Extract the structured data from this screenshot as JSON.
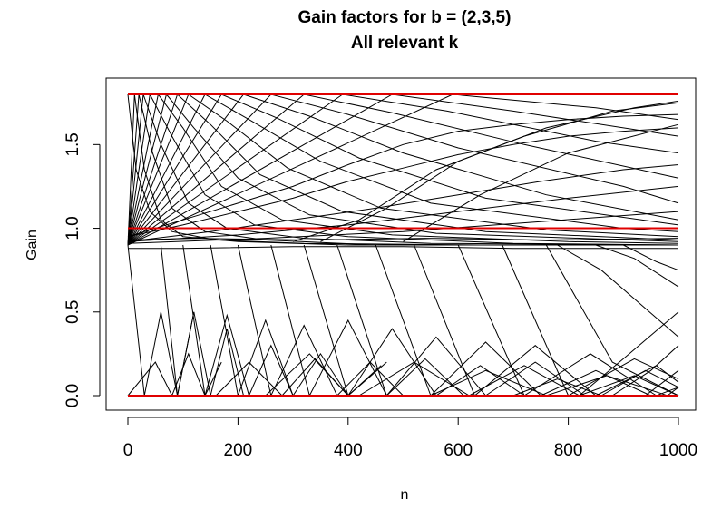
{
  "chart_data": {
    "type": "line",
    "title": "Gain factors for b = (2,3,5)",
    "subtitle": "All relevant k",
    "xlabel": "n",
    "ylabel": "Gain",
    "xlim": [
      0,
      1000
    ],
    "ylim": [
      0,
      1.8
    ],
    "x_ticks": [
      "0",
      "200",
      "400",
      "600",
      "800",
      "1000"
    ],
    "y_ticks": [
      "0.0",
      "0.5",
      "1.0",
      "1.5"
    ],
    "grid": false,
    "reference_lines": [
      {
        "y": 0.0,
        "color": "#e00000"
      },
      {
        "y": 1.0,
        "color": "#e00000"
      },
      {
        "y": 1.8,
        "color": "#e00000"
      }
    ],
    "series_color": "#000000",
    "series": [
      {
        "x": [
          0,
          12,
          30,
          60,
          100,
          200,
          400,
          700,
          1000
        ],
        "values": [
          0.9,
          1.8,
          1.35,
          1.05,
          0.95,
          0.92,
          0.9,
          0.9,
          0.9
        ]
      },
      {
        "x": [
          0,
          20,
          45,
          80,
          140,
          250,
          450,
          750,
          1000
        ],
        "values": [
          0.9,
          1.8,
          1.45,
          1.12,
          0.98,
          0.93,
          0.9,
          0.9,
          0.9
        ]
      },
      {
        "x": [
          0,
          28,
          60,
          110,
          180,
          320,
          550,
          1000
        ],
        "values": [
          0.9,
          1.8,
          1.5,
          1.15,
          1.0,
          0.94,
          0.91,
          0.9
        ]
      },
      {
        "x": [
          0,
          40,
          80,
          140,
          230,
          400,
          700,
          1000
        ],
        "values": [
          0.9,
          1.8,
          1.55,
          1.2,
          1.02,
          0.95,
          0.91,
          0.9
        ]
      },
      {
        "x": [
          0,
          55,
          100,
          170,
          280,
          480,
          800,
          1000
        ],
        "values": [
          0.9,
          1.8,
          1.6,
          1.25,
          1.05,
          0.96,
          0.92,
          0.91
        ]
      },
      {
        "x": [
          0,
          70,
          120,
          200,
          330,
          560,
          1000
        ],
        "values": [
          0.9,
          1.8,
          1.6,
          1.3,
          1.08,
          0.97,
          0.92
        ]
      },
      {
        "x": [
          0,
          90,
          150,
          240,
          390,
          650,
          1000
        ],
        "values": [
          0.9,
          1.8,
          1.62,
          1.32,
          1.1,
          0.98,
          0.93
        ]
      },
      {
        "x": [
          0,
          110,
          180,
          290,
          460,
          760,
          1000
        ],
        "values": [
          0.9,
          1.8,
          1.64,
          1.36,
          1.12,
          0.99,
          0.95
        ]
      },
      {
        "x": [
          0,
          140,
          220,
          350,
          550,
          900,
          1000
        ],
        "values": [
          0.9,
          1.8,
          1.65,
          1.4,
          1.15,
          1.0,
          0.98
        ]
      },
      {
        "x": [
          0,
          170,
          270,
          420,
          650,
          1000
        ],
        "values": [
          0.9,
          1.8,
          1.66,
          1.42,
          1.18,
          1.02
        ]
      },
      {
        "x": [
          0,
          210,
          330,
          500,
          760,
          1000
        ],
        "values": [
          0.9,
          1.8,
          1.67,
          1.45,
          1.2,
          1.05
        ]
      },
      {
        "x": [
          0,
          260,
          400,
          600,
          900,
          1000
        ],
        "values": [
          0.9,
          1.8,
          1.68,
          1.48,
          1.25,
          1.15
        ]
      },
      {
        "x": [
          0,
          320,
          480,
          720,
          1000
        ],
        "values": [
          0.9,
          1.8,
          1.69,
          1.5,
          1.3
        ]
      },
      {
        "x": [
          0,
          390,
          580,
          850,
          1000
        ],
        "values": [
          0.9,
          1.8,
          1.7,
          1.52,
          1.45
        ]
      },
      {
        "x": [
          0,
          480,
          700,
          1000
        ],
        "values": [
          0.9,
          1.8,
          1.7,
          1.55
        ]
      },
      {
        "x": [
          0,
          590,
          850,
          1000
        ],
        "values": [
          0.9,
          1.8,
          1.72,
          1.65
        ]
      },
      {
        "x": [
          0,
          15,
          40,
          80,
          160,
          320,
          640,
          1000
        ],
        "values": [
          1.8,
          1.35,
          1.1,
          0.98,
          0.93,
          0.91,
          0.9,
          0.9
        ]
      },
      {
        "x": [
          0,
          100,
          200,
          300,
          400,
          500,
          600,
          700,
          800,
          900,
          1000
        ],
        "values": [
          0.95,
          1.05,
          1.15,
          1.25,
          1.38,
          1.5,
          1.58,
          1.62,
          1.65,
          1.67,
          1.68
        ]
      },
      {
        "x": [
          0,
          100,
          200,
          300,
          400,
          500,
          600,
          700,
          800,
          900,
          1000
        ],
        "values": [
          0.95,
          1.02,
          1.1,
          1.18,
          1.28,
          1.36,
          1.44,
          1.5,
          1.55,
          1.58,
          1.6
        ]
      },
      {
        "x": [
          0,
          150,
          300,
          450,
          600,
          750,
          900,
          1000
        ],
        "values": [
          0.92,
          0.98,
          1.05,
          1.12,
          1.2,
          1.28,
          1.35,
          1.38
        ]
      },
      {
        "x": [
          0,
          200,
          400,
          600,
          800,
          1000
        ],
        "values": [
          0.92,
          0.96,
          1.02,
          1.1,
          1.18,
          1.25
        ]
      },
      {
        "x": [
          0,
          250,
          500,
          750,
          1000
        ],
        "values": [
          0.91,
          0.94,
          0.98,
          1.04,
          1.1
        ]
      },
      {
        "x": [
          300,
          420,
          560,
          720,
          880,
          1000
        ],
        "values": [
          0.92,
          1.05,
          1.35,
          1.55,
          1.7,
          1.75
        ]
      },
      {
        "x": [
          350,
          470,
          600,
          760,
          920,
          1000
        ],
        "values": [
          0.92,
          1.12,
          1.4,
          1.6,
          1.72,
          1.76
        ]
      },
      {
        "x": [
          500,
          640,
          800,
          1000
        ],
        "values": [
          0.92,
          1.2,
          1.45,
          1.62
        ]
      },
      {
        "x": [
          0,
          100,
          300,
          500,
          700,
          900,
          1000
        ],
        "values": [
          0.88,
          0.88,
          0.89,
          0.89,
          0.88,
          0.88,
          0.88
        ]
      },
      {
        "x": [
          0,
          120,
          330,
          540,
          760,
          1000
        ],
        "values": [
          0.93,
          0.94,
          0.93,
          0.94,
          0.93,
          0.94
        ]
      },
      {
        "x": [
          0,
          30,
          60,
          90,
          120
        ],
        "values": [
          0.9,
          0.0,
          0.5,
          0.0,
          0.5
        ]
      },
      {
        "x": [
          60,
          90,
          120,
          150,
          180,
          210
        ],
        "values": [
          0.9,
          0.0,
          0.5,
          0.0,
          0.4,
          0.0
        ]
      },
      {
        "x": [
          100,
          140,
          180,
          220,
          260,
          300
        ],
        "values": [
          0.9,
          0.0,
          0.48,
          0.0,
          0.3,
          0.0
        ]
      },
      {
        "x": [
          150,
          200,
          250,
          300,
          350,
          400
        ],
        "values": [
          0.9,
          0.0,
          0.45,
          0.0,
          0.25,
          0.0
        ]
      },
      {
        "x": [
          200,
          260,
          320,
          380,
          440,
          500
        ],
        "values": [
          0.9,
          0.0,
          0.42,
          0.0,
          0.2,
          0.0
        ]
      },
      {
        "x": [
          260,
          330,
          400,
          470,
          540,
          610
        ],
        "values": [
          0.9,
          0.0,
          0.45,
          0.0,
          0.22,
          0.0
        ]
      },
      {
        "x": [
          320,
          400,
          480,
          560,
          640,
          720
        ],
        "values": [
          0.9,
          0.0,
          0.4,
          0.0,
          0.18,
          0.0
        ]
      },
      {
        "x": [
          380,
          470,
          560,
          650,
          740,
          830
        ],
        "values": [
          0.9,
          0.0,
          0.35,
          0.0,
          0.2,
          0.0
        ]
      },
      {
        "x": [
          450,
          550,
          650,
          750,
          850,
          950
        ],
        "values": [
          0.9,
          0.0,
          0.32,
          0.0,
          0.15,
          0.0
        ]
      },
      {
        "x": [
          520,
          630,
          740,
          850,
          960,
          1000
        ],
        "values": [
          0.9,
          0.0,
          0.3,
          0.0,
          0.18,
          0.08
        ]
      },
      {
        "x": [
          600,
          720,
          840,
          960,
          1000
        ],
        "values": [
          0.9,
          0.0,
          0.25,
          0.0,
          0.05
        ]
      },
      {
        "x": [
          680,
          800,
          920,
          1000
        ],
        "values": [
          0.9,
          0.0,
          0.22,
          0.1
        ]
      },
      {
        "x": [
          760,
          880,
          1000
        ],
        "values": [
          0.9,
          0.2,
          0.0
        ]
      },
      {
        "x": [
          0,
          50,
          80,
          110,
          140,
          170
        ],
        "values": [
          0.0,
          0.2,
          0.0,
          0.25,
          0.0,
          0.2
        ]
      },
      {
        "x": [
          160,
          220,
          280,
          340,
          400,
          460
        ],
        "values": [
          0.0,
          0.2,
          0.0,
          0.22,
          0.0,
          0.18
        ]
      },
      {
        "x": [
          420,
          520,
          620,
          720,
          820,
          920,
          1000
        ],
        "values": [
          0.0,
          0.2,
          0.0,
          0.18,
          0.0,
          0.12,
          0.0
        ]
      },
      {
        "x": [
          550,
          650,
          760,
          870,
          980,
          1000
        ],
        "values": [
          0.0,
          0.15,
          0.0,
          0.12,
          0.0,
          0.05
        ]
      },
      {
        "x": [
          250,
          330,
          400,
          470
        ],
        "values": [
          0.0,
          0.25,
          0.0,
          0.2
        ]
      },
      {
        "x": [
          700,
          780,
          860,
          940,
          1000
        ],
        "values": [
          0.0,
          0.1,
          0.0,
          0.15,
          0.05
        ]
      },
      {
        "x": [
          780,
          860,
          930,
          1000
        ],
        "values": [
          0.9,
          0.75,
          0.55,
          0.35
        ]
      },
      {
        "x": [
          850,
          920,
          1000
        ],
        "values": [
          0.9,
          0.82,
          0.65
        ]
      },
      {
        "x": [
          900,
          960,
          1000
        ],
        "values": [
          0.9,
          0.8,
          0.75
        ]
      },
      {
        "x": [
          820,
          900,
          1000
        ],
        "values": [
          0.0,
          0.22,
          0.5
        ]
      },
      {
        "x": [
          880,
          950,
          1000
        ],
        "values": [
          0.0,
          0.15,
          0.3
        ]
      },
      {
        "x": [
          940,
          1000
        ],
        "values": [
          0.0,
          0.15
        ]
      }
    ]
  }
}
